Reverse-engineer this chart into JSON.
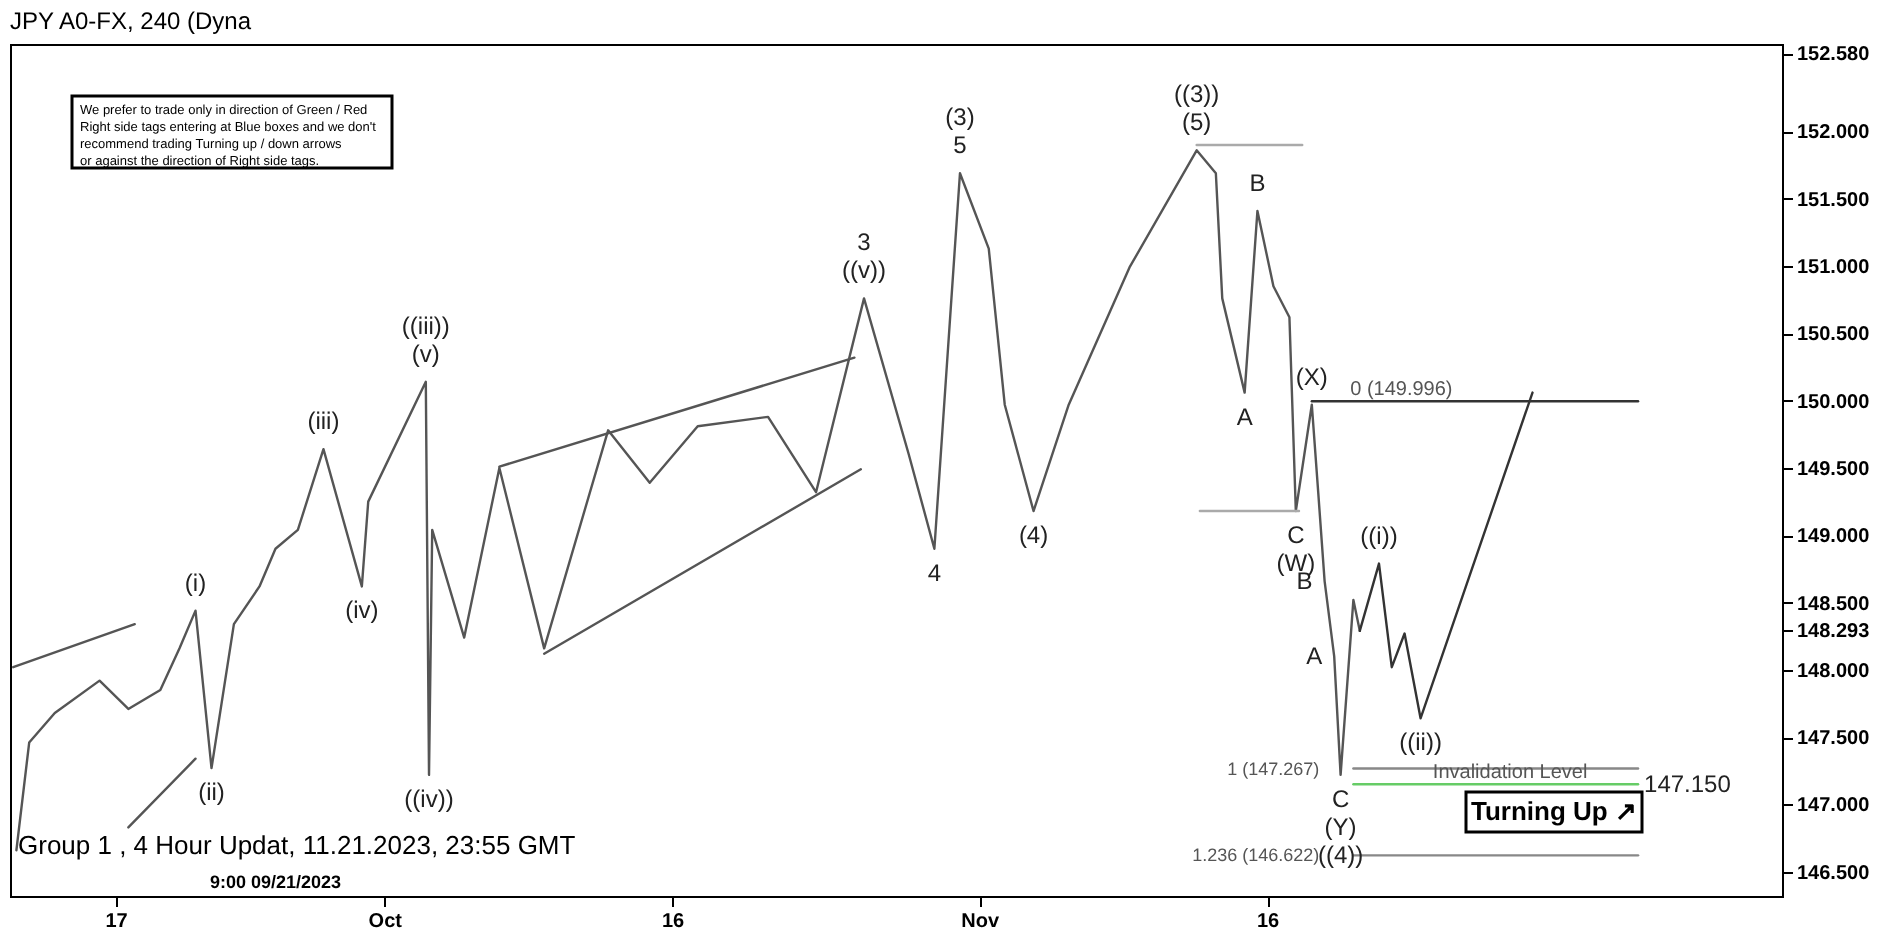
{
  "chart_data": {
    "type": "line",
    "title": "JPY A0-FX, 240 (Dyna",
    "xlim": [
      "2023-09-11T12:00",
      "2023-12-12T20:00"
    ],
    "ylim": [
      146.32,
      152.65
    ],
    "xticks": [
      {
        "value": "2023-09-17",
        "label": "17"
      },
      {
        "value": "2023-10-01",
        "label": "Oct"
      },
      {
        "value": "2023-10-16",
        "label": "16"
      },
      {
        "value": "2023-11-01",
        "label": "Nov"
      },
      {
        "value": "2023-11-16",
        "label": "16"
      }
    ],
    "yticks": [
      {
        "value": 146.5,
        "label": "146.500"
      },
      {
        "value": 147.0,
        "label": "147.000"
      },
      {
        "value": 147.5,
        "label": "147.500"
      },
      {
        "value": 148.0,
        "label": "148.000"
      },
      {
        "value": 148.293,
        "label": "148.293"
      },
      {
        "value": 148.5,
        "label": "148.500"
      },
      {
        "value": 149.0,
        "label": "149.000"
      },
      {
        "value": 149.5,
        "label": "149.500"
      },
      {
        "value": 150.0,
        "label": "150.000"
      },
      {
        "value": 150.5,
        "label": "150.500"
      },
      {
        "value": 151.0,
        "label": "151.000"
      },
      {
        "value": 151.5,
        "label": "151.500"
      },
      {
        "value": 152.0,
        "label": "152.000"
      },
      {
        "value": 152.58,
        "label": "152.580"
      }
    ],
    "series": [
      {
        "type": "line",
        "color": "#555555",
        "x": [
          "2023-09-11T20:00",
          "2023-09-12T12:00",
          "2023-09-13T20:00",
          "2023-09-16T04:00",
          "2023-09-17T16:00",
          "2023-09-19T08:00",
          "2023-09-20T08:00",
          "2023-09-21T04:00",
          "2023-09-22T00:00",
          "2023-09-23T04:00",
          "2023-09-24T12:00",
          "2023-09-25T08:00",
          "2023-09-26T12:00",
          "2023-09-27T20:00",
          "2023-09-29T20:00",
          "2023-09-30T04:00",
          "2023-10-03T04:00",
          "2023-10-03T08:00",
          "2023-10-03T12:00",
          "2023-10-05T04:00",
          "2023-10-07T00:00",
          "2023-10-09T08:00",
          "2023-10-12T16:00",
          "2023-10-14T20:00",
          "2023-10-17T08:00",
          "2023-10-21T00:00",
          "2023-10-23T12:00",
          "2023-10-26T00:00",
          "2023-10-28T08:00",
          "2023-10-29T16:00",
          "2023-10-30T00:00",
          "2023-10-31T00:00",
          "2023-11-01T12:00",
          "2023-11-02T08:00",
          "2023-11-03T20:00",
          "2023-11-05T16:00",
          "2023-11-08T20:00",
          "2023-11-12T08:00",
          "2023-11-13T08:00",
          "2023-11-13T16:00",
          "2023-11-14T20:00",
          "2023-11-15T12:00",
          "2023-11-16T08:00",
          "2023-11-17T04:00",
          "2023-11-17T12:00",
          "2023-11-18T08:00",
          "2023-11-18T16:00",
          "2023-11-19T00:00",
          "2023-11-19T12:00",
          "2023-11-19T20:00",
          "2023-11-20T12:00",
          "2023-11-20T20:00"
        ],
        "values": [
          146.66,
          147.46,
          147.68,
          147.92,
          147.71,
          147.85,
          148.16,
          148.44,
          147.27,
          148.34,
          148.62,
          148.9,
          149.04,
          149.64,
          148.62,
          149.25,
          150.14,
          147.22,
          149.04,
          148.24,
          149.5,
          148.16,
          149.78,
          149.39,
          149.81,
          149.88,
          149.32,
          150.76,
          149.6,
          148.9,
          149.6,
          151.69,
          151.13,
          149.97,
          149.18,
          149.97,
          150.99,
          151.86,
          151.69,
          150.76,
          150.06,
          151.41,
          150.85,
          150.62,
          149.18,
          149.97,
          149.32,
          148.66,
          148.1,
          147.22,
          148.52,
          148.29
        ]
      },
      {
        "type": "line",
        "color": "#333333",
        "x": [
          "2023-11-20T20:00",
          "2023-11-21T20:00",
          "2023-11-22T12:00",
          "2023-11-23T04:00",
          "2023-11-24T00:00",
          "2023-11-29T20:00"
        ],
        "values": [
          148.29,
          148.79,
          148.02,
          148.27,
          147.64,
          150.06
        ]
      },
      {
        "type": "line",
        "color": "#555555",
        "x": [
          "2023-09-11T16:00",
          "2023-09-18T00:00"
        ],
        "values": [
          148.02,
          148.34
        ]
      },
      {
        "type": "line",
        "color": "#555555",
        "x": [
          "2023-09-17T16:00",
          "2023-09-21T04:00"
        ],
        "values": [
          146.83,
          147.34
        ]
      },
      {
        "type": "line",
        "color": "#555555",
        "x": [
          "2023-10-07T00:00",
          "2023-10-25T12:00"
        ],
        "values": [
          149.51,
          150.32
        ]
      },
      {
        "type": "line",
        "color": "#555555",
        "x": [
          "2023-10-09T08:00",
          "2023-10-25T20:00"
        ],
        "values": [
          148.12,
          149.49
        ]
      },
      {
        "type": "line",
        "color": "#aaaaaa",
        "x": [
          "2023-11-12T08:00",
          "2023-11-17T20:00"
        ],
        "values": [
          151.9,
          151.9
        ]
      },
      {
        "type": "line",
        "color": "#aaaaaa",
        "x": [
          "2023-11-12T12:00",
          "2023-11-17T16:00"
        ],
        "values": [
          149.18,
          149.18
        ]
      },
      {
        "type": "line",
        "color": "#333333",
        "x": [
          "2023-11-18T08:00",
          "2023-12-05T08:00"
        ],
        "values": [
          149.996,
          149.996
        ]
      },
      {
        "type": "line",
        "color": "#888888",
        "x": [
          "2023-11-20T12:00",
          "2023-12-05T08:00"
        ],
        "values": [
          147.267,
          147.267
        ]
      },
      {
        "type": "line",
        "color": "#888888",
        "x": [
          "2023-11-20T12:00",
          "2023-12-05T08:00"
        ],
        "values": [
          146.622,
          146.622
        ]
      },
      {
        "type": "line",
        "color": "#66cc66",
        "x": [
          "2023-11-20T12:00",
          "2023-12-05T08:00"
        ],
        "values": [
          147.15,
          147.15
        ]
      }
    ],
    "annotations": [
      "We prefer to trade only in direction of Green / Red\nRight side tags entering at Blue boxes and we don't\nrecommend trading Turning up / down arrows\nor against the direction of Right side tags.",
      "Group 1 , 4 Hour Updat, 11.21.2023, 23:55 GMT",
      "9:00 09/21/2023",
      "Turning Up ↗",
      {
        "text": "(i)",
        "x": "2023-09-21T04:00",
        "y": 148.44
      },
      {
        "text": "(ii)",
        "x": "2023-09-22T00:00",
        "y": 147.27
      },
      {
        "text": "(iii)",
        "x": "2023-09-27T20:00",
        "y": 149.64
      },
      {
        "text": "(iv)",
        "x": "2023-09-29T20:00",
        "y": 148.62
      },
      {
        "text": "(v)",
        "x": "2023-10-03T04:00",
        "y": 150.14
      },
      {
        "text": "((iii))",
        "x": "2023-10-03T04:00",
        "y": 150.14
      },
      {
        "text": "((iv))",
        "x": "2023-10-03T08:00",
        "y": 147.22
      },
      {
        "text": "((v))",
        "x": "2023-10-26T00:00",
        "y": 150.76
      },
      {
        "text": "3",
        "x": "2023-10-26T00:00",
        "y": 150.76
      },
      {
        "text": "4",
        "x": "2023-10-29T16:00",
        "y": 148.9
      },
      {
        "text": "5",
        "x": "2023-10-31T00:00",
        "y": 151.69
      },
      {
        "text": "(3)",
        "x": "2023-10-31T00:00",
        "y": 151.69
      },
      {
        "text": "(4)",
        "x": "2023-11-03T20:00",
        "y": 149.18
      },
      {
        "text": "(5)",
        "x": "2023-11-12T08:00",
        "y": 151.86
      },
      {
        "text": "((3))",
        "x": "2023-11-12T08:00",
        "y": 151.86
      },
      {
        "text": "A",
        "x": "2023-11-14T20:00",
        "y": 150.06
      },
      {
        "text": "B",
        "x": "2023-11-15T12:00",
        "y": 151.41
      },
      {
        "text": "C",
        "x": "2023-11-17T12:00",
        "y": 149.18
      },
      {
        "text": "(W)",
        "x": "2023-11-17T12:00",
        "y": 149.18
      },
      {
        "text": "(X)",
        "x": "2023-11-18T08:00",
        "y": 149.97
      },
      {
        "text": "B",
        "x": "2023-11-19T00:00",
        "y": 148.66
      },
      {
        "text": "A",
        "x": "2023-11-19T12:00",
        "y": 148.1
      },
      {
        "text": "C",
        "x": "2023-11-19T20:00",
        "y": 147.22
      },
      {
        "text": "(Y)",
        "x": "2023-11-19T20:00",
        "y": 147.22
      },
      {
        "text": "((4))",
        "x": "2023-11-19T20:00",
        "y": 147.22
      },
      {
        "text": "((i))",
        "x": "2023-11-21T20:00",
        "y": 148.79
      },
      {
        "text": "((ii))",
        "x": "2023-11-24T00:00",
        "y": 147.64
      },
      {
        "text": "0 (149.996)",
        "x": "2023-11-23T00:00",
        "y": 149.996
      },
      {
        "text": "1 (147.267)",
        "x": "2023-11-20T12:00",
        "y": 147.267
      },
      {
        "text": "1.236 (146.622)",
        "x": "2023-11-20T12:00",
        "y": 146.622
      },
      {
        "text": "Invalidation Level",
        "x": "2023-11-28T16:00",
        "y": 147.15
      },
      {
        "text": "147.150",
        "x": "2023-12-05T08:00",
        "y": 147.15
      }
    ]
  }
}
